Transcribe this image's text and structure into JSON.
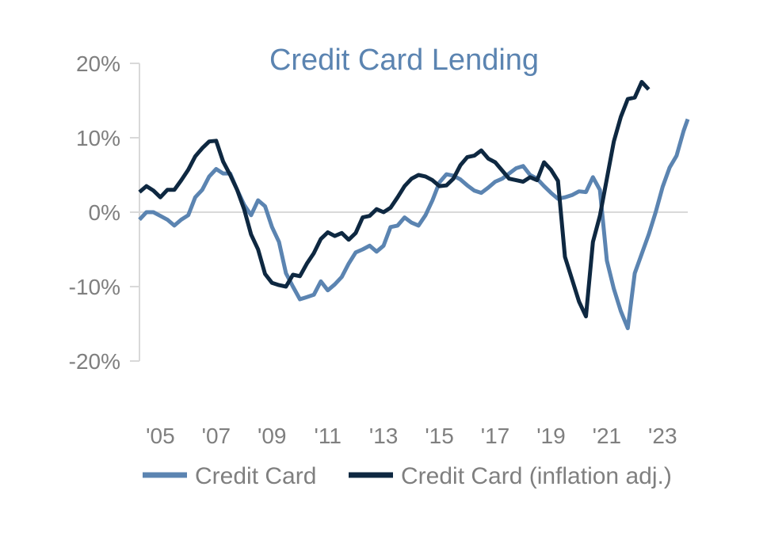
{
  "chart_data": {
    "type": "line",
    "title": "Credit Card Lending",
    "xlabel": "",
    "ylabel": "",
    "x_range": [
      2004.25,
      2023.9
    ],
    "ylim": [
      -20,
      20
    ],
    "y_ticks": [
      {
        "value": 20,
        "label": "20%"
      },
      {
        "value": 10,
        "label": "10%"
      },
      {
        "value": 0,
        "label": "0%"
      },
      {
        "value": -10,
        "label": "-10%"
      },
      {
        "value": -20,
        "label": "-20%"
      }
    ],
    "x_ticks": [
      {
        "value": 2005,
        "label": "'05"
      },
      {
        "value": 2007,
        "label": "'07"
      },
      {
        "value": 2009,
        "label": "'09"
      },
      {
        "value": 2011,
        "label": "'11"
      },
      {
        "value": 2013,
        "label": "'13"
      },
      {
        "value": 2015,
        "label": "'15"
      },
      {
        "value": 2017,
        "label": "'17"
      },
      {
        "value": 2019,
        "label": "'19"
      },
      {
        "value": 2021,
        "label": "'21"
      },
      {
        "value": 2023,
        "label": "'23"
      }
    ],
    "grid": false,
    "legend_position": "bottom",
    "series": [
      {
        "name": "Credit Card",
        "color": "#5b84b1",
        "points": [
          [
            2004.25,
            -1.0
          ],
          [
            2004.5,
            0.0
          ],
          [
            2004.75,
            0.0
          ],
          [
            2005.0,
            -0.5
          ],
          [
            2005.25,
            -1.0
          ],
          [
            2005.5,
            -1.8
          ],
          [
            2005.75,
            -1.0
          ],
          [
            2006.0,
            -0.4
          ],
          [
            2006.25,
            2.0
          ],
          [
            2006.5,
            3.0
          ],
          [
            2006.75,
            4.8
          ],
          [
            2007.0,
            5.8
          ],
          [
            2007.25,
            5.2
          ],
          [
            2007.5,
            5.2
          ],
          [
            2007.75,
            3.0
          ],
          [
            2008.0,
            1.0
          ],
          [
            2008.25,
            -0.4
          ],
          [
            2008.5,
            1.6
          ],
          [
            2008.75,
            0.8
          ],
          [
            2009.0,
            -2.0
          ],
          [
            2009.25,
            -4.0
          ],
          [
            2009.5,
            -8.2
          ],
          [
            2009.75,
            -10.0
          ],
          [
            2010.0,
            -11.7
          ],
          [
            2010.25,
            -11.4
          ],
          [
            2010.5,
            -11.1
          ],
          [
            2010.75,
            -9.3
          ],
          [
            2011.0,
            -10.5
          ],
          [
            2011.25,
            -9.7
          ],
          [
            2011.5,
            -8.7
          ],
          [
            2011.75,
            -6.9
          ],
          [
            2012.0,
            -5.4
          ],
          [
            2012.25,
            -5.0
          ],
          [
            2012.5,
            -4.5
          ],
          [
            2012.75,
            -5.3
          ],
          [
            2013.0,
            -4.5
          ],
          [
            2013.25,
            -2.0
          ],
          [
            2013.5,
            -1.8
          ],
          [
            2013.75,
            -0.7
          ],
          [
            2014.0,
            -1.4
          ],
          [
            2014.25,
            -1.8
          ],
          [
            2014.5,
            -0.4
          ],
          [
            2014.75,
            1.6
          ],
          [
            2015.0,
            4.0
          ],
          [
            2015.25,
            5.1
          ],
          [
            2015.5,
            4.9
          ],
          [
            2015.75,
            4.4
          ],
          [
            2016.0,
            3.6
          ],
          [
            2016.25,
            2.9
          ],
          [
            2016.5,
            2.6
          ],
          [
            2016.75,
            3.3
          ],
          [
            2017.0,
            4.1
          ],
          [
            2017.25,
            4.5
          ],
          [
            2017.5,
            5.2
          ],
          [
            2017.75,
            5.9
          ],
          [
            2018.0,
            6.2
          ],
          [
            2018.25,
            5.0
          ],
          [
            2018.5,
            4.5
          ],
          [
            2018.75,
            3.5
          ],
          [
            2019.0,
            2.6
          ],
          [
            2019.25,
            1.8
          ],
          [
            2019.5,
            2.0
          ],
          [
            2019.75,
            2.3
          ],
          [
            2020.0,
            2.8
          ],
          [
            2020.25,
            2.7
          ],
          [
            2020.5,
            4.7
          ],
          [
            2020.75,
            3.0
          ],
          [
            2021.0,
            -6.5
          ],
          [
            2021.25,
            -10.3
          ],
          [
            2021.5,
            -13.3
          ],
          [
            2021.75,
            -15.6
          ],
          [
            2022.0,
            -8.2
          ],
          [
            2022.25,
            -5.6
          ],
          [
            2022.5,
            -3.0
          ],
          [
            2022.75,
            0.0
          ],
          [
            2023.0,
            3.4
          ],
          [
            2023.25,
            6.0
          ],
          [
            2023.5,
            7.6
          ],
          [
            2023.75,
            10.9
          ],
          [
            2023.9,
            12.5
          ]
        ]
      },
      {
        "name": "Credit Card (inflation adj.)",
        "color": "#0e2841",
        "points": [
          [
            2004.25,
            2.7
          ],
          [
            2004.5,
            3.5
          ],
          [
            2004.75,
            2.9
          ],
          [
            2005.0,
            2.0
          ],
          [
            2005.25,
            3.0
          ],
          [
            2005.5,
            3.0
          ],
          [
            2005.75,
            4.3
          ],
          [
            2006.0,
            5.7
          ],
          [
            2006.25,
            7.5
          ],
          [
            2006.5,
            8.6
          ],
          [
            2006.75,
            9.5
          ],
          [
            2007.0,
            9.6
          ],
          [
            2007.25,
            6.8
          ],
          [
            2007.5,
            5.0
          ],
          [
            2007.75,
            3.0
          ],
          [
            2008.0,
            0.4
          ],
          [
            2008.25,
            -3.0
          ],
          [
            2008.5,
            -5.0
          ],
          [
            2008.75,
            -8.3
          ],
          [
            2009.0,
            -9.5
          ],
          [
            2009.25,
            -9.8
          ],
          [
            2009.5,
            -10.0
          ],
          [
            2009.75,
            -8.4
          ],
          [
            2010.0,
            -8.6
          ],
          [
            2010.25,
            -6.9
          ],
          [
            2010.5,
            -5.5
          ],
          [
            2010.75,
            -3.6
          ],
          [
            2011.0,
            -2.7
          ],
          [
            2011.25,
            -3.2
          ],
          [
            2011.5,
            -2.8
          ],
          [
            2011.75,
            -3.7
          ],
          [
            2012.0,
            -2.8
          ],
          [
            2012.25,
            -0.7
          ],
          [
            2012.5,
            -0.5
          ],
          [
            2012.75,
            0.4
          ],
          [
            2013.0,
            0.0
          ],
          [
            2013.25,
            0.6
          ],
          [
            2013.5,
            2.0
          ],
          [
            2013.75,
            3.5
          ],
          [
            2014.0,
            4.5
          ],
          [
            2014.25,
            5.0
          ],
          [
            2014.5,
            4.8
          ],
          [
            2014.75,
            4.3
          ],
          [
            2015.0,
            3.5
          ],
          [
            2015.25,
            3.6
          ],
          [
            2015.5,
            4.5
          ],
          [
            2015.75,
            6.3
          ],
          [
            2016.0,
            7.4
          ],
          [
            2016.25,
            7.6
          ],
          [
            2016.5,
            8.3
          ],
          [
            2016.75,
            7.2
          ],
          [
            2017.0,
            6.7
          ],
          [
            2017.25,
            5.6
          ],
          [
            2017.5,
            4.5
          ],
          [
            2017.75,
            4.3
          ],
          [
            2018.0,
            4.1
          ],
          [
            2018.25,
            4.7
          ],
          [
            2018.5,
            4.3
          ],
          [
            2018.75,
            6.7
          ],
          [
            2019.0,
            5.7
          ],
          [
            2019.25,
            4.2
          ],
          [
            2019.5,
            -6.0
          ],
          [
            2019.75,
            -9.0
          ],
          [
            2020.0,
            -12.0
          ],
          [
            2020.25,
            -14.0
          ],
          [
            2020.5,
            -4.0
          ],
          [
            2020.75,
            -0.5
          ],
          [
            2021.0,
            4.5
          ],
          [
            2021.25,
            9.5
          ],
          [
            2021.5,
            12.8
          ],
          [
            2021.75,
            15.2
          ],
          [
            2022.0,
            15.4
          ],
          [
            2022.25,
            17.5
          ],
          [
            2022.5,
            16.5
          ]
        ]
      }
    ]
  }
}
